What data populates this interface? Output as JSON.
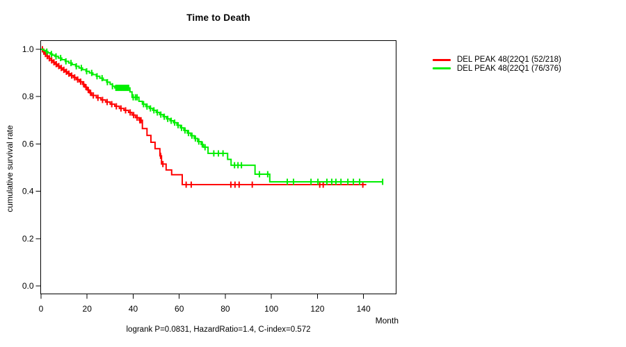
{
  "figure": {
    "title": "Time to Death",
    "ylabel": "cumulative survival rate",
    "xlabel": "Month",
    "footer": "logrank P=0.0831, HazardRatio=1.4, C-index=0.572"
  },
  "legend": {
    "position": "top-right-outside",
    "items": [
      {
        "label": "DEL PEAK 48(22Q1 (52/218)",
        "color": "#ff0000"
      },
      {
        "label": "DEL PEAK 48(22Q1 (76/376)",
        "color": "#00ee00"
      }
    ]
  },
  "chart_data": {
    "type": "line",
    "subtype": "kaplan-meier-step",
    "title": "Time to Death",
    "xlabel": "Month",
    "ylabel": "cumulative survival rate",
    "xlim": [
      0,
      154
    ],
    "ylim": [
      0,
      1
    ],
    "xticks": [
      0,
      20,
      40,
      60,
      80,
      100,
      120,
      140
    ],
    "yticks": [
      0.0,
      0.2,
      0.4,
      0.6,
      0.8,
      1.0
    ],
    "grid": false,
    "legend_position": "top-right-outside",
    "annotation": "logrank P=0.0831, HazardRatio=1.4, C-index=0.572",
    "series": [
      {
        "name": "DEL PEAK 48(22Q1 (52/218)",
        "color": "#ff0000",
        "steps": [
          [
            0,
            1.0
          ],
          [
            0.8,
            0.99
          ],
          [
            1.6,
            0.98
          ],
          [
            2.5,
            0.971
          ],
          [
            3.4,
            0.962
          ],
          [
            4.3,
            0.953
          ],
          [
            5.2,
            0.945
          ],
          [
            6.2,
            0.937
          ],
          [
            7.2,
            0.929
          ],
          [
            8.2,
            0.921
          ],
          [
            9.3,
            0.913
          ],
          [
            10.4,
            0.905
          ],
          [
            11.5,
            0.897
          ],
          [
            12.7,
            0.889
          ],
          [
            14,
            0.881
          ],
          [
            15.3,
            0.872
          ],
          [
            16.6,
            0.863
          ],
          [
            18,
            0.852
          ],
          [
            19,
            0.84
          ],
          [
            20,
            0.828
          ],
          [
            21,
            0.816
          ],
          [
            22,
            0.805
          ],
          [
            24,
            0.795
          ],
          [
            26,
            0.786
          ],
          [
            28,
            0.777
          ],
          [
            30,
            0.768
          ],
          [
            32,
            0.759
          ],
          [
            34,
            0.75
          ],
          [
            36,
            0.742
          ],
          [
            38,
            0.733
          ],
          [
            39.5,
            0.722
          ],
          [
            41,
            0.711
          ],
          [
            42.5,
            0.7
          ],
          [
            44,
            0.665
          ],
          [
            46,
            0.636
          ],
          [
            47.7,
            0.607
          ],
          [
            49.5,
            0.58
          ],
          [
            51.6,
            0.55
          ],
          [
            52.3,
            0.515
          ],
          [
            54.3,
            0.49
          ],
          [
            56.7,
            0.47
          ],
          [
            61.3,
            0.428
          ],
          [
            141.2,
            0.428
          ]
        ],
        "censor_times": [
          0.6,
          1.2,
          1.9,
          2.7,
          3.6,
          4.6,
          5.6,
          6.6,
          7.7,
          8.8,
          9.9,
          11,
          12.1,
          13.3,
          14.6,
          15.9,
          17.2,
          18.5,
          19.5,
          20.5,
          21.5,
          22.7,
          24.7,
          26.7,
          28.7,
          30.7,
          32.7,
          34.7,
          36.7,
          38.7,
          40.2,
          41.7,
          42.9,
          43.4,
          51.9,
          52.9,
          63,
          65.2,
          82.4,
          84.2,
          86,
          91.7,
          121,
          122.5,
          139.7
        ]
      },
      {
        "name": "DEL PEAK 48(22Q1 (76/376)",
        "color": "#00ee00",
        "steps": [
          [
            0,
            1.0
          ],
          [
            1,
            0.995
          ],
          [
            2,
            0.99
          ],
          [
            3,
            0.985
          ],
          [
            4,
            0.98
          ],
          [
            5,
            0.975
          ],
          [
            6,
            0.97
          ],
          [
            7.5,
            0.963
          ],
          [
            9,
            0.956
          ],
          [
            10.5,
            0.949
          ],
          [
            12,
            0.942
          ],
          [
            13.5,
            0.935
          ],
          [
            15,
            0.928
          ],
          [
            16.5,
            0.921
          ],
          [
            18,
            0.914
          ],
          [
            19.5,
            0.907
          ],
          [
            21,
            0.9
          ],
          [
            22.5,
            0.893
          ],
          [
            24,
            0.886
          ],
          [
            25.5,
            0.878
          ],
          [
            27,
            0.87
          ],
          [
            28.5,
            0.861
          ],
          [
            30,
            0.852
          ],
          [
            31,
            0.844
          ],
          [
            32,
            0.837
          ],
          [
            38.6,
            0.82
          ],
          [
            39.5,
            0.797
          ],
          [
            42.5,
            0.78
          ],
          [
            44,
            0.768
          ],
          [
            45.5,
            0.758
          ],
          [
            47,
            0.75
          ],
          [
            48.5,
            0.742
          ],
          [
            50,
            0.733
          ],
          [
            51.5,
            0.724
          ],
          [
            53,
            0.715
          ],
          [
            54.5,
            0.706
          ],
          [
            56,
            0.698
          ],
          [
            57.5,
            0.69
          ],
          [
            59,
            0.679
          ],
          [
            60.5,
            0.668
          ],
          [
            62,
            0.657
          ],
          [
            63.5,
            0.646
          ],
          [
            65,
            0.635
          ],
          [
            66.5,
            0.623
          ],
          [
            68,
            0.61
          ],
          [
            69.5,
            0.598
          ],
          [
            70.5,
            0.586
          ],
          [
            72.5,
            0.56
          ],
          [
            81,
            0.535
          ],
          [
            82.5,
            0.51
          ],
          [
            92.9,
            0.472
          ],
          [
            99.3,
            0.44
          ],
          [
            148.2,
            0.44
          ]
        ],
        "censor_times": [
          2.5,
          4.5,
          6.5,
          8.5,
          10.8,
          13,
          15.3,
          17.5,
          19.8,
          22,
          24.3,
          26.5,
          28.8,
          31,
          32.5,
          33,
          33.5,
          34,
          34.5,
          35,
          35.5,
          36,
          36.5,
          37,
          37.5,
          38,
          40,
          41,
          41.7,
          44.5,
          46,
          47.5,
          49,
          50.5,
          52,
          53.5,
          55,
          56.5,
          58,
          59.5,
          61,
          62.5,
          64,
          65.5,
          67,
          68.5,
          70,
          71.2,
          75,
          77,
          79,
          84,
          85.5,
          87,
          94.8,
          98.4,
          106.9,
          109.6,
          117.2,
          120.2,
          124.1,
          126.2,
          128,
          130.2,
          133.2,
          135.6,
          138.3,
          148.3
        ]
      }
    ]
  }
}
